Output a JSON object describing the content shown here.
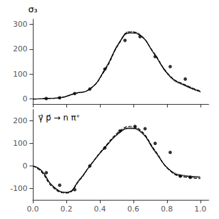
{
  "chart_data": [
    {
      "type": "line",
      "ylabel": "σ₃",
      "xlim": [
        0,
        1.05
      ],
      "xticks": [
        {
          "value": 0,
          "label": "0.0"
        },
        0.2,
        0.4,
        0.6,
        0.8,
        {
          "value": 1,
          "label": "1.0"
        }
      ],
      "ylim": [
        -20,
        320
      ],
      "yticks": [
        0,
        100,
        200,
        300
      ],
      "tick_labels": "y",
      "grid": false,
      "color": "#000000",
      "series": [
        {
          "type": "line",
          "line_style": "solid",
          "x": [
            0.0,
            0.08,
            0.16,
            0.25,
            0.34,
            0.43,
            0.52,
            0.58,
            0.64,
            0.72,
            0.82,
            0.91,
            1.0
          ],
          "values": [
            0,
            2,
            5,
            22,
            40,
            118,
            230,
            265,
            255,
            185,
            90,
            55,
            30
          ]
        },
        {
          "type": "line",
          "line_style": "dashed",
          "x": [
            0.0,
            0.08,
            0.16,
            0.25,
            0.34,
            0.43,
            0.52,
            0.58,
            0.64,
            0.72,
            0.82,
            0.91,
            1.0
          ],
          "values": [
            0,
            2,
            5,
            22,
            40,
            115,
            228,
            268,
            256,
            188,
            92,
            57,
            32
          ]
        },
        {
          "type": "line",
          "line_style": "dotted",
          "x": [
            0.0,
            0.08,
            0.16,
            0.25,
            0.34,
            0.43,
            0.52,
            0.58,
            0.64,
            0.72,
            0.82,
            0.91,
            1.0
          ],
          "values": [
            0,
            2,
            5,
            22,
            40,
            120,
            232,
            270,
            258,
            186,
            88,
            52,
            28
          ]
        },
        {
          "type": "scatter",
          "marker": "circle",
          "x": [
            0.08,
            0.16,
            0.25,
            0.34,
            0.43,
            0.55,
            0.64,
            0.73,
            0.82,
            0.91
          ],
          "values": [
            2,
            5,
            22,
            40,
            120,
            235,
            250,
            170,
            130,
            80
          ]
        }
      ]
    },
    {
      "type": "line",
      "annotation": "γ⃗ p⃗ → n π⁺",
      "xlim": [
        0,
        1.05
      ],
      "xticks": [
        {
          "value": 0,
          "label": "0.0"
        },
        0.2,
        0.4,
        0.6,
        0.8,
        {
          "value": 1,
          "label": "1.0"
        }
      ],
      "ylim": [
        -150,
        250
      ],
      "yticks": [
        -100,
        0,
        100,
        200
      ],
      "grid": false,
      "color": "#000000",
      "series": [
        {
          "type": "line",
          "line_style": "solid",
          "x": [
            0.0,
            0.05,
            0.12,
            0.2,
            0.28,
            0.34,
            0.43,
            0.52,
            0.58,
            0.64,
            0.73,
            0.82,
            0.91,
            1.0
          ],
          "values": [
            0,
            -20,
            -90,
            -118,
            -60,
            0,
            82,
            150,
            168,
            155,
            65,
            -20,
            -45,
            -50
          ]
        },
        {
          "type": "line",
          "line_style": "dashed",
          "x": [
            0.0,
            0.05,
            0.12,
            0.2,
            0.28,
            0.34,
            0.43,
            0.52,
            0.58,
            0.64,
            0.73,
            0.82,
            0.91,
            1.0
          ],
          "values": [
            0,
            -25,
            -95,
            -120,
            -62,
            0,
            85,
            155,
            175,
            160,
            68,
            -22,
            -50,
            -55
          ]
        },
        {
          "type": "line",
          "line_style": "dotted",
          "x": [
            0.0,
            0.05,
            0.12,
            0.2,
            0.28,
            0.34,
            0.43,
            0.52,
            0.58,
            0.64,
            0.73,
            0.82,
            0.91,
            1.0
          ],
          "values": [
            0,
            -18,
            -88,
            -116,
            -58,
            0,
            80,
            148,
            165,
            152,
            62,
            -18,
            -42,
            -47
          ]
        },
        {
          "type": "scatter",
          "marker": "circle",
          "x": [
            0.08,
            0.16,
            0.25,
            0.34,
            0.43,
            0.52,
            0.61,
            0.67,
            0.73,
            0.82,
            0.88,
            0.94
          ],
          "values": [
            -30,
            -85,
            -105,
            0,
            80,
            155,
            175,
            165,
            100,
            60,
            -45,
            -50
          ]
        }
      ]
    }
  ]
}
